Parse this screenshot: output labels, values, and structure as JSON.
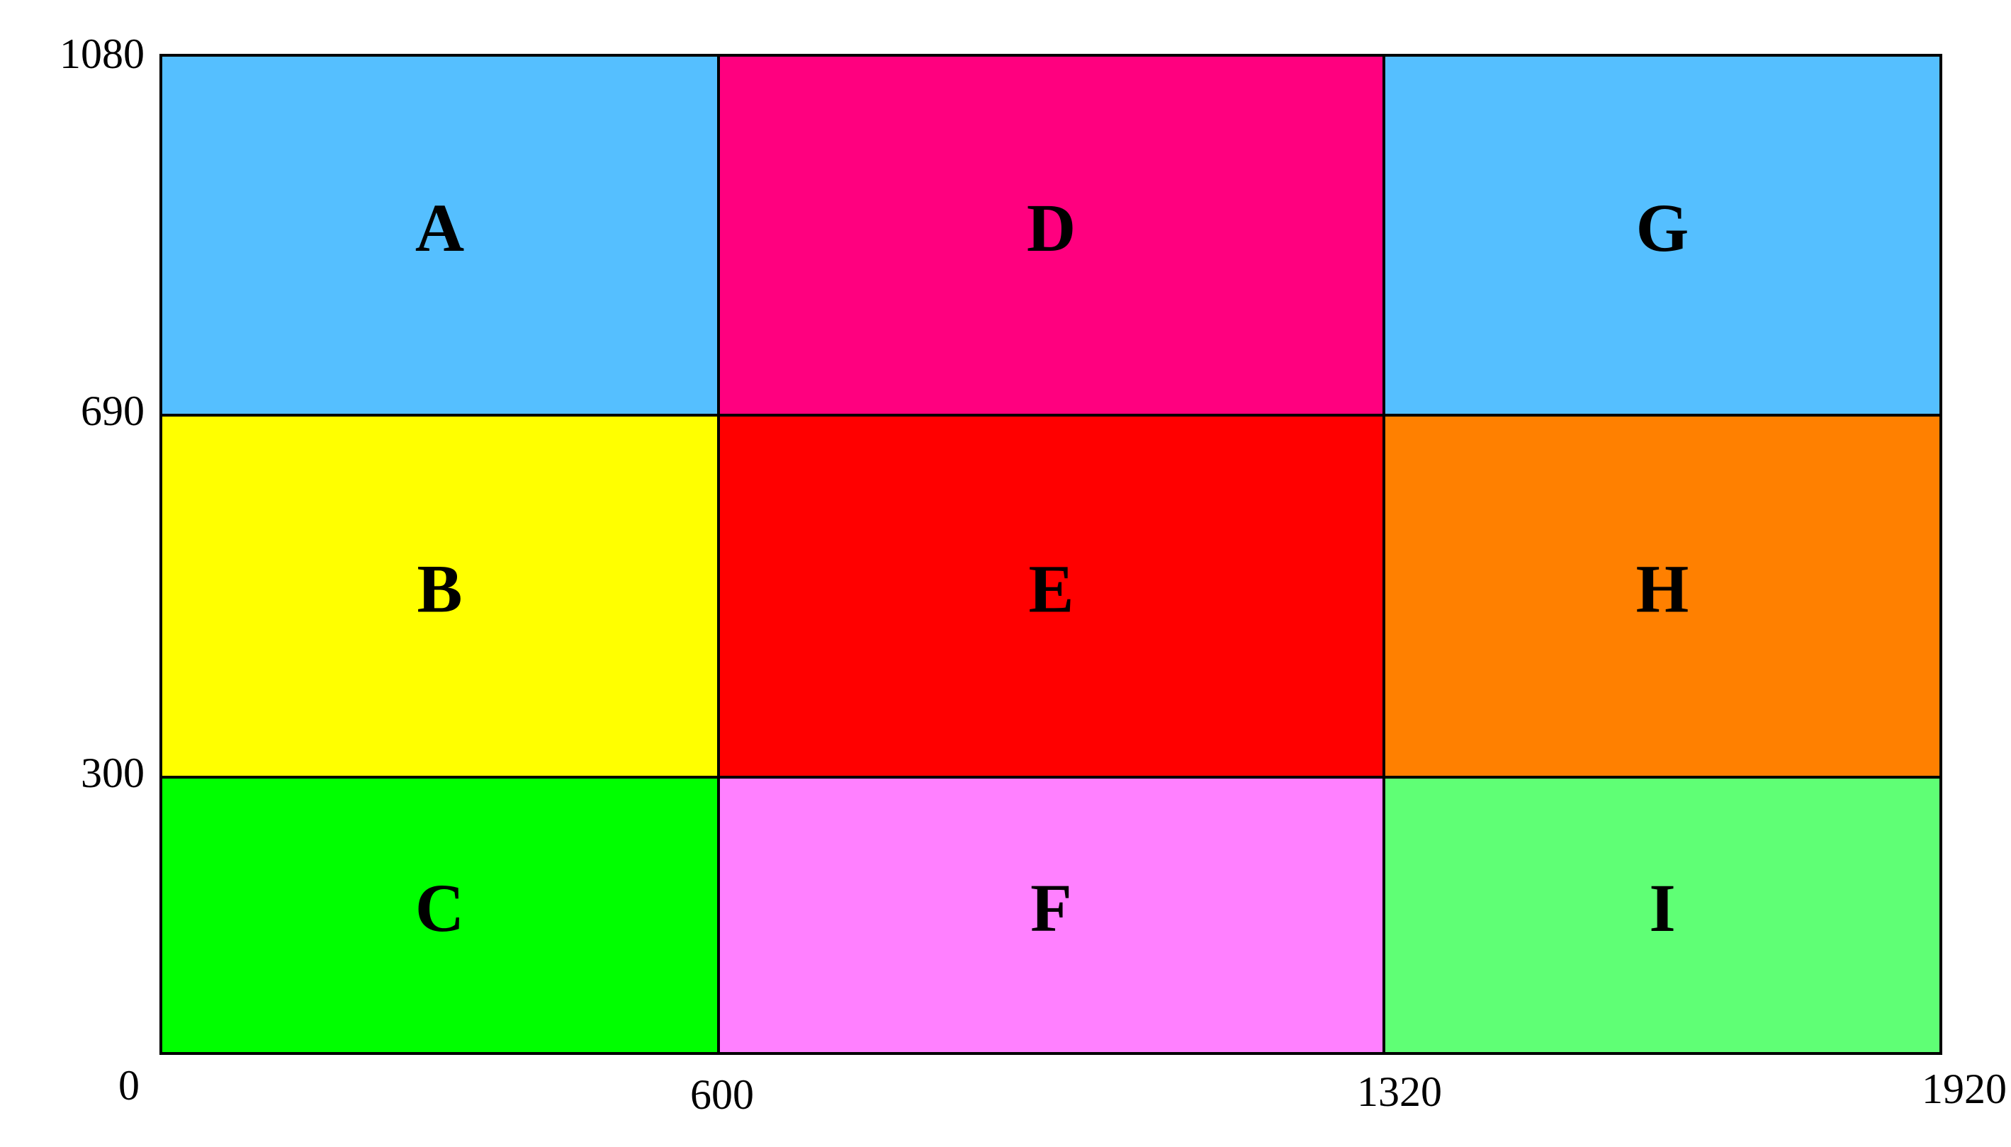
{
  "axis": {
    "x_labels": [
      "0",
      "600",
      "1320",
      "1920"
    ],
    "y_labels": [
      "1080",
      "690",
      "300"
    ]
  },
  "regions": [
    {
      "label": "A",
      "color": "#55bfff"
    },
    {
      "label": "B",
      "color": "#ffff00"
    },
    {
      "label": "C",
      "color": "#00ff00"
    },
    {
      "label": "D",
      "color": "#ff007f"
    },
    {
      "label": "E",
      "color": "#ff0000"
    },
    {
      "label": "F",
      "color": "#ff80ff"
    },
    {
      "label": "G",
      "color": "#55bfff"
    },
    {
      "label": "H",
      "color": "#ff8000"
    },
    {
      "label": "I",
      "color": "#5fff75"
    }
  ]
}
